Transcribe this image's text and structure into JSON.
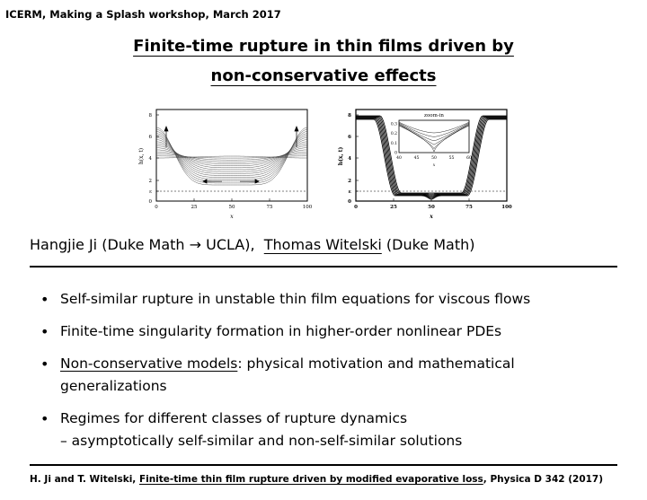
{
  "header": "ICERM, Making a Splash workshop, March 2017",
  "title_line1": "Finite-time rupture in thin films driven by",
  "title_line2": "non-conservative effects",
  "figures": [
    {
      "ylabel": "h(x, t)",
      "xlabel": "x",
      "xticks": [
        "0",
        "25",
        "50",
        "75",
        "100"
      ],
      "yticks": [
        "0",
        "ε",
        "2",
        "4",
        "6",
        "8"
      ]
    },
    {
      "ylabel": "h(x, t)",
      "xlabel": "x",
      "xticks": [
        "0",
        "25",
        "50",
        "75",
        "100"
      ],
      "yticks": [
        "0",
        "ε",
        "2",
        "4",
        "6",
        "8"
      ],
      "inset": {
        "title": "zoom-in",
        "xticks": [
          "40",
          "45",
          "50",
          "55",
          "60"
        ],
        "yticks": [
          "0",
          "0.1",
          "0.2",
          "0.3"
        ],
        "xlabel": "x"
      }
    }
  ],
  "authors": {
    "a1": "Hangjie Ji (Duke Math → UCLA),",
    "a2": "Thomas Witelski",
    "a3": "(Duke Math)"
  },
  "bullets": {
    "b1": "Self-similar rupture in unstable thin film equations for viscous flows",
    "b2": "Finite-time singularity formation in higher-order nonlinear PDEs",
    "b3_u": "Non-conservative models",
    "b3_rest": ": physical motivation and mathematical",
    "b3_line2": "generalizations",
    "b4": "Regimes for different classes of rupture dynamics",
    "b4_line2": "– asymptotically self-similar and non-self-similar solutions"
  },
  "footer": {
    "pre": "H. Ji and T. Witelski,",
    "link": "Finite-time thin film rupture driven by modified evaporative loss",
    "post": ", Physica D 342 (2017)"
  }
}
